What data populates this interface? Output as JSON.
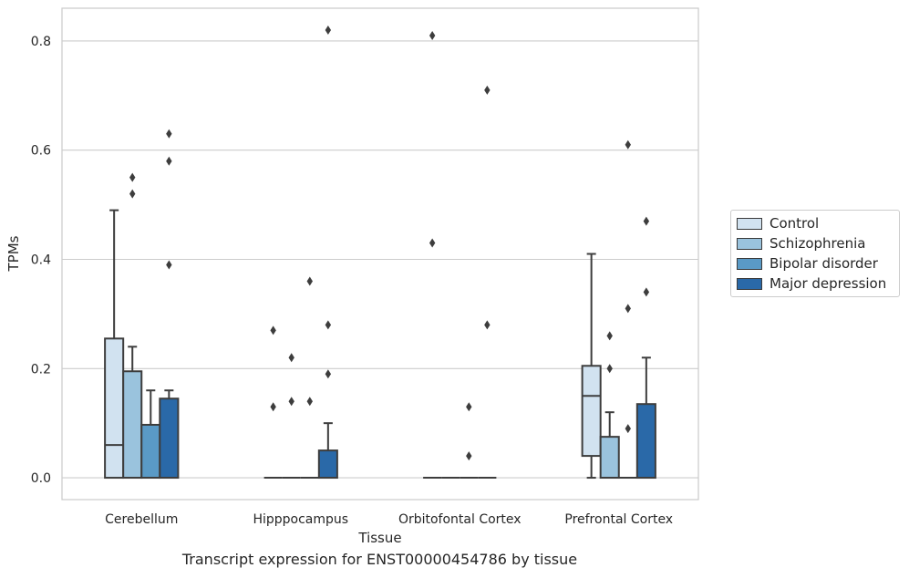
{
  "chart_data": {
    "type": "boxplot",
    "xlabel": "Tissue",
    "ylabel": "TPMs",
    "caption": "Transcript expression for ENST00000454786 by tissue",
    "ylim": [
      -0.04,
      0.86
    ],
    "yticks": [
      0.0,
      0.2,
      0.4,
      0.6,
      0.8
    ],
    "ytick_labels": [
      "0.0",
      "0.2",
      "0.4",
      "0.6",
      "0.8"
    ],
    "grid": "horizontal",
    "legend_position": "right",
    "categories": [
      "Cerebellum",
      "Hipppocampus",
      "Orbitofontal Cortex",
      "Prefrontal Cortex"
    ],
    "series": [
      {
        "name": "Control",
        "color": "#d1e2f0",
        "boxes": [
          {
            "whislo": 0.0,
            "q1": 0.0,
            "med": 0.06,
            "q3": 0.255,
            "whishi": 0.49,
            "fliers": []
          },
          {
            "whislo": 0.0,
            "q1": 0.0,
            "med": 0.0,
            "q3": 0.0,
            "whishi": 0.0,
            "fliers": [
              0.13,
              0.27
            ]
          },
          {
            "whislo": 0.0,
            "q1": 0.0,
            "med": 0.0,
            "q3": 0.0,
            "whishi": 0.0,
            "fliers": [
              0.43,
              0.81
            ]
          },
          {
            "whislo": 0.0,
            "q1": 0.04,
            "med": 0.15,
            "q3": 0.205,
            "whishi": 0.41,
            "fliers": []
          }
        ]
      },
      {
        "name": "Schizophrenia",
        "color": "#9ac3dd",
        "boxes": [
          {
            "whislo": 0.0,
            "q1": 0.0,
            "med": 0.0,
            "q3": 0.195,
            "whishi": 0.24,
            "fliers": [
              0.52,
              0.55
            ]
          },
          {
            "whislo": 0.0,
            "q1": 0.0,
            "med": 0.0,
            "q3": 0.0,
            "whishi": 0.0,
            "fliers": [
              0.14,
              0.22
            ]
          },
          {
            "whislo": 0.0,
            "q1": 0.0,
            "med": 0.0,
            "q3": 0.0,
            "whishi": 0.0,
            "fliers": []
          },
          {
            "whislo": 0.0,
            "q1": 0.0,
            "med": 0.0,
            "q3": 0.075,
            "whishi": 0.12,
            "fliers": [
              0.2,
              0.26
            ]
          }
        ]
      },
      {
        "name": "Bipolar disorder",
        "color": "#5a9ac6",
        "boxes": [
          {
            "whislo": 0.0,
            "q1": 0.0,
            "med": 0.0,
            "q3": 0.097,
            "whishi": 0.16,
            "fliers": []
          },
          {
            "whislo": 0.0,
            "q1": 0.0,
            "med": 0.0,
            "q3": 0.0,
            "whishi": 0.0,
            "fliers": [
              0.14,
              0.36
            ]
          },
          {
            "whislo": 0.0,
            "q1": 0.0,
            "med": 0.0,
            "q3": 0.0,
            "whishi": 0.0,
            "fliers": [
              0.04,
              0.13
            ]
          },
          {
            "whislo": 0.0,
            "q1": 0.0,
            "med": 0.0,
            "q3": 0.0,
            "whishi": 0.0,
            "fliers": [
              0.09,
              0.31,
              0.61
            ]
          }
        ]
      },
      {
        "name": "Major depression",
        "color": "#2a69a8",
        "boxes": [
          {
            "whislo": 0.0,
            "q1": 0.0,
            "med": 0.0,
            "q3": 0.145,
            "whishi": 0.16,
            "fliers": [
              0.39,
              0.58,
              0.63
            ]
          },
          {
            "whislo": 0.0,
            "q1": 0.0,
            "med": 0.0,
            "q3": 0.05,
            "whishi": 0.1,
            "fliers": [
              0.19,
              0.28,
              0.82
            ]
          },
          {
            "whislo": 0.0,
            "q1": 0.0,
            "med": 0.0,
            "q3": 0.0,
            "whishi": 0.0,
            "fliers": [
              0.28,
              0.71
            ]
          },
          {
            "whislo": 0.0,
            "q1": 0.0,
            "med": 0.0,
            "q3": 0.135,
            "whishi": 0.22,
            "fliers": [
              0.34,
              0.47
            ]
          }
        ]
      }
    ]
  }
}
